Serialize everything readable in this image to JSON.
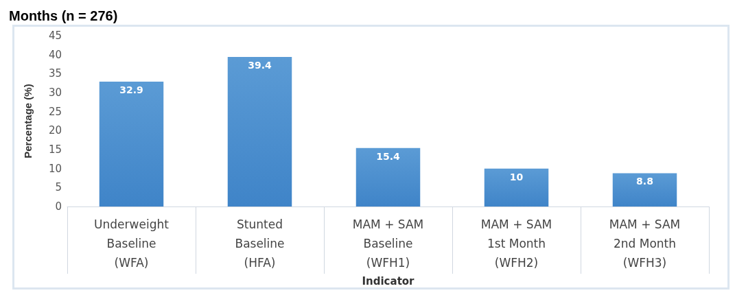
{
  "chart_data": {
    "type": "bar",
    "title": "Months (n = 276)",
    "xlabel": "Indicator",
    "ylabel": "Percentage (%)",
    "categories": [
      "Underweight\nBaseline\n(WFA)",
      "Stunted\nBaseline\n(HFA)",
      "MAM + SAM\nBaseline\n(WFH1)",
      "MAM + SAM\n1st Month\n(WFH2)",
      "MAM + SAM\n2nd Month\n(WFH3)"
    ],
    "values": [
      32.9,
      39.4,
      15.4,
      10,
      8.8
    ],
    "color": "#5b9bd5",
    "ylim": [
      0,
      45
    ],
    "yticks": [
      0,
      5,
      10,
      15,
      20,
      25,
      30,
      35,
      40,
      45
    ],
    "grid": false,
    "data_labels": true
  }
}
